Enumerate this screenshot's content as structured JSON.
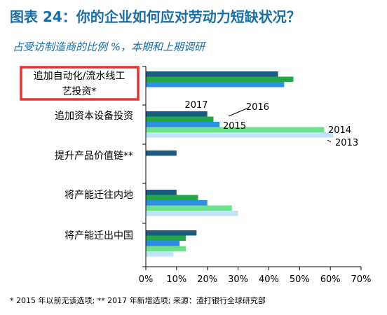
{
  "title": "图表 24：你的企业如何应对劳动力短缺状况？",
  "subtitle": "占受访制造商的比例 %，本期和上期调研",
  "footnote": "* 2015 年以前无该选项; ** 2017 年新增选项; 来源：渣打银行全球研究部",
  "colors": {
    "2017": "#1b5c84",
    "2016": "#22a845",
    "2015": "#2c8fe0",
    "2014": "#6ee08f",
    "2013": "#bfe3f7",
    "highlight_box": "#e8322f",
    "title": "#1a6ea8"
  },
  "chart_data": {
    "type": "bar",
    "orientation": "horizontal",
    "categories": [
      "追加自动化/流水线工艺投资*",
      "追加资本设备投资",
      "提升产品价值链**",
      "将产能迁往内地",
      "将产能迁出中国"
    ],
    "category_lines": [
      [
        "追加自动化/流水线工",
        "艺投资*"
      ],
      [
        "追加资本设备投资"
      ],
      [
        "提升产品价值链**"
      ],
      [
        "将产能迁往内地"
      ],
      [
        "将产能迁出中国"
      ]
    ],
    "highlighted_category": 0,
    "series": [
      {
        "name": "2017",
        "values": [
          43,
          20,
          10,
          10,
          16.5
        ]
      },
      {
        "name": "2016",
        "values": [
          48,
          22,
          null,
          17,
          13
        ]
      },
      {
        "name": "2015",
        "values": [
          45,
          24,
          null,
          20,
          11
        ]
      },
      {
        "name": "2014",
        "values": [
          null,
          58,
          null,
          28,
          13
        ]
      },
      {
        "name": "2013",
        "values": [
          null,
          61,
          null,
          30,
          9
        ]
      }
    ],
    "xlim": [
      0,
      70
    ],
    "xticks": [
      "0%",
      "10%",
      "20%",
      "30%",
      "40%",
      "50%",
      "60%",
      "70%"
    ],
    "grid": false,
    "legend": "inline labels on 追加资本设备投资 bars"
  }
}
